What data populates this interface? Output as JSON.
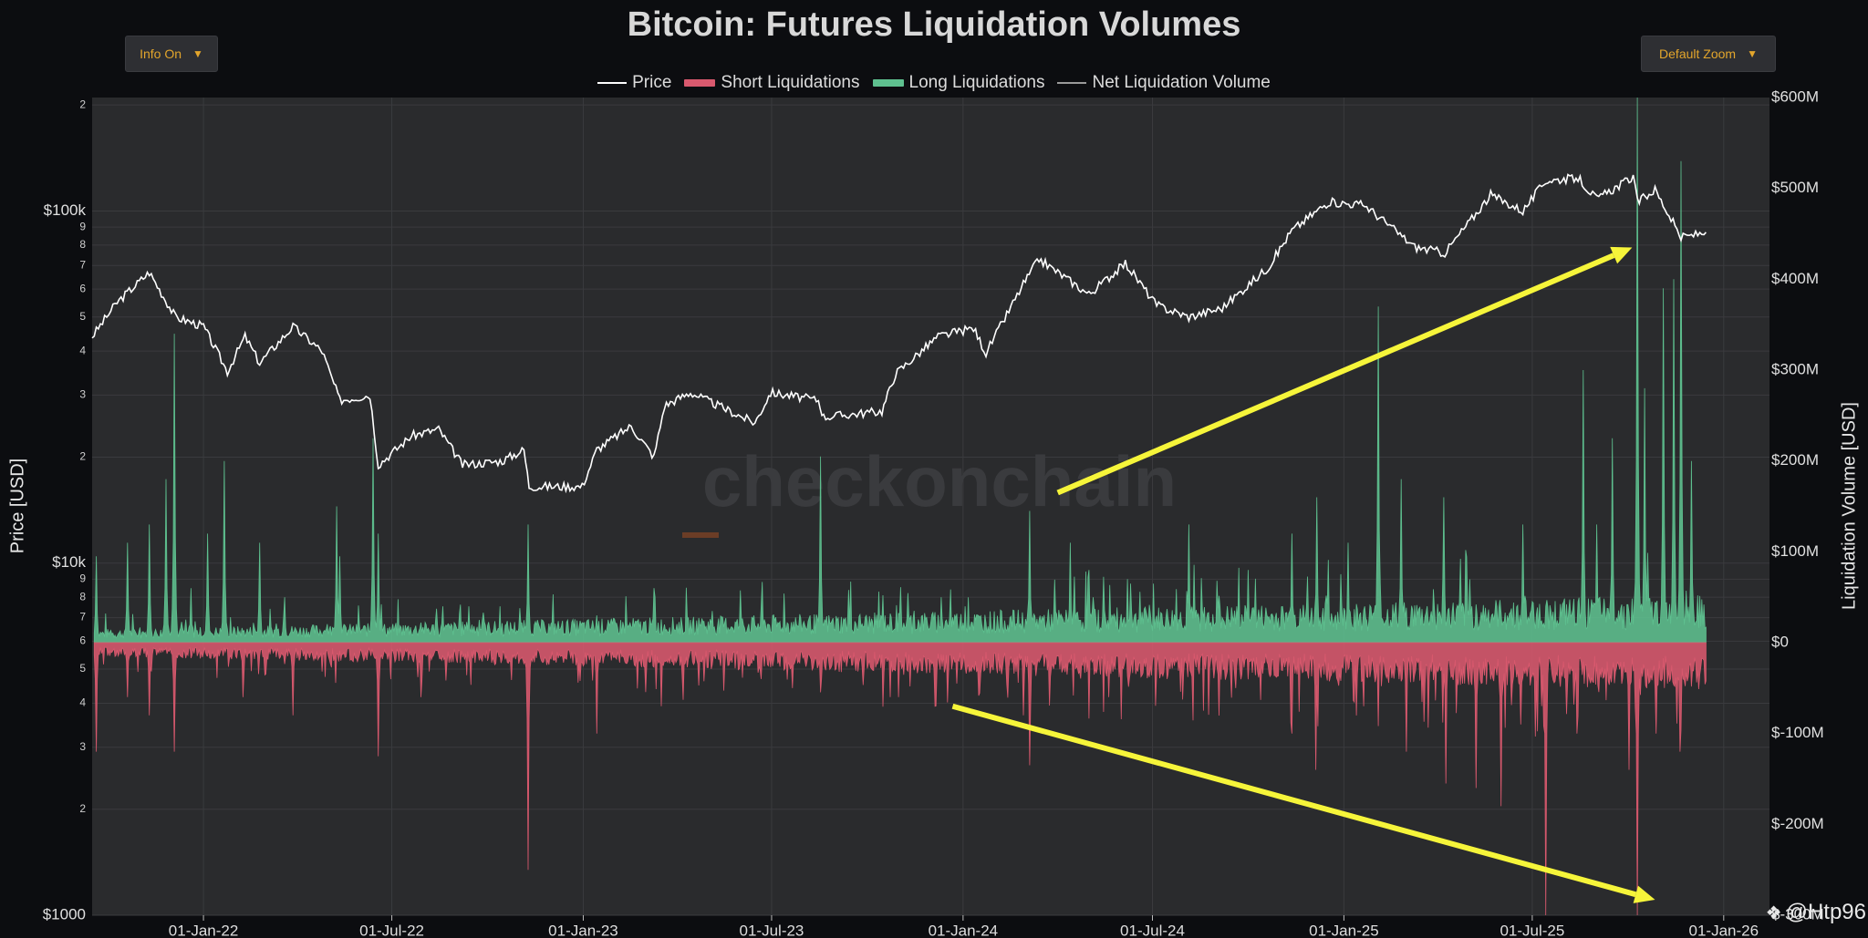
{
  "title": "Bitcoin: Futures Liquidation Volumes",
  "controls": {
    "info_button": "Info On",
    "zoom_button": "Default Zoom"
  },
  "legend": [
    {
      "label": "Price",
      "color": "#ffffff",
      "kind": "line"
    },
    {
      "label": "Short Liquidations",
      "color": "#d9596e",
      "kind": "box"
    },
    {
      "label": "Long Liquidations",
      "color": "#5ec08f",
      "kind": "box"
    },
    {
      "label": "Net Liquidation Volume",
      "color": "#9a9a9a",
      "kind": "line"
    }
  ],
  "watermark": "checkonchain",
  "credit": "@Htp96",
  "chart_data": {
    "type": "line",
    "title": "Bitcoin: Futures Liquidation Volumes",
    "x_ticks": [
      "01-Jan-22",
      "01-Jul-22",
      "01-Jan-23",
      "01-Jul-23",
      "01-Jan-24",
      "01-Jul-24",
      "01-Jan-25",
      "01-Jul-25",
      "01-Jan-26"
    ],
    "x_range": [
      "2021-09-16",
      "2026-02-14"
    ],
    "y_left": {
      "label": "Price [USD]",
      "scale": "log",
      "range": [
        1000,
        210000
      ],
      "major_ticks": [
        {
          "v": 1000,
          "t": "$1000"
        },
        {
          "v": 10000,
          "t": "$10k"
        },
        {
          "v": 100000,
          "t": "$100k"
        }
      ],
      "minor_ticks": [
        {
          "v": 2000,
          "t": "2"
        },
        {
          "v": 3000,
          "t": "3"
        },
        {
          "v": 4000,
          "t": "4"
        },
        {
          "v": 5000,
          "t": "5"
        },
        {
          "v": 6000,
          "t": "6"
        },
        {
          "v": 7000,
          "t": "7"
        },
        {
          "v": 8000,
          "t": "8"
        },
        {
          "v": 9000,
          "t": "9"
        },
        {
          "v": 20000,
          "t": "2"
        },
        {
          "v": 30000,
          "t": "3"
        },
        {
          "v": 40000,
          "t": "4"
        },
        {
          "v": 50000,
          "t": "5"
        },
        {
          "v": 60000,
          "t": "6"
        },
        {
          "v": 70000,
          "t": "7"
        },
        {
          "v": 80000,
          "t": "8"
        },
        {
          "v": 90000,
          "t": "9"
        },
        {
          "v": 200000,
          "t": "2"
        }
      ]
    },
    "y_right": {
      "label": "Liquidation Volume [USD]",
      "scale": "linear",
      "range": [
        -300,
        600
      ],
      "unit": "M",
      "ticks": [
        {
          "v": 600,
          "t": "$600M"
        },
        {
          "v": 500,
          "t": "$500M"
        },
        {
          "v": 400,
          "t": "$400M"
        },
        {
          "v": 300,
          "t": "$300M"
        },
        {
          "v": 200,
          "t": "$200M"
        },
        {
          "v": 100,
          "t": "$100M"
        },
        {
          "v": 0,
          "t": "$0"
        },
        {
          "v": -100,
          "t": "$-100M"
        },
        {
          "v": -200,
          "t": "$-200M"
        },
        {
          "v": -300,
          "t": "$-300M"
        }
      ]
    },
    "series": [
      {
        "name": "Price",
        "color": "#ffffff",
        "points": [
          [
            "2021-09-16",
            44000
          ],
          [
            "2021-10-10",
            55000
          ],
          [
            "2021-11-10",
            67000
          ],
          [
            "2021-12-05",
            50000
          ],
          [
            "2022-01-01",
            47000
          ],
          [
            "2022-01-24",
            35000
          ],
          [
            "2022-02-10",
            44000
          ],
          [
            "2022-02-24",
            37000
          ],
          [
            "2022-03-28",
            47000
          ],
          [
            "2022-04-25",
            40000
          ],
          [
            "2022-05-12",
            29000
          ],
          [
            "2022-06-10",
            30000
          ],
          [
            "2022-06-18",
            19000
          ],
          [
            "2022-07-20",
            23000
          ],
          [
            "2022-08-15",
            24000
          ],
          [
            "2022-09-07",
            19000
          ],
          [
            "2022-10-15",
            19500
          ],
          [
            "2022-11-05",
            21000
          ],
          [
            "2022-11-10",
            16500
          ],
          [
            "2022-12-31",
            16500
          ],
          [
            "2023-01-14",
            21000
          ],
          [
            "2023-02-16",
            24500
          ],
          [
            "2023-03-10",
            20000
          ],
          [
            "2023-03-20",
            28000
          ],
          [
            "2023-04-14",
            30500
          ],
          [
            "2023-06-15",
            25000
          ],
          [
            "2023-06-30",
            30500
          ],
          [
            "2023-08-15",
            29000
          ],
          [
            "2023-08-20",
            26000
          ],
          [
            "2023-10-15",
            27000
          ],
          [
            "2023-10-28",
            34500
          ],
          [
            "2023-12-08",
            44000
          ],
          [
            "2024-01-11",
            46500
          ],
          [
            "2024-01-23",
            39500
          ],
          [
            "2024-02-28",
            62000
          ],
          [
            "2024-03-14",
            73000
          ],
          [
            "2024-05-01",
            58000
          ],
          [
            "2024-06-05",
            71000
          ],
          [
            "2024-07-05",
            54000
          ],
          [
            "2024-08-05",
            50000
          ],
          [
            "2024-09-06",
            53000
          ],
          [
            "2024-10-20",
            69000
          ],
          [
            "2024-11-12",
            88000
          ],
          [
            "2024-12-17",
            106000
          ],
          [
            "2025-01-21",
            104000
          ],
          [
            "2025-03-10",
            79000
          ],
          [
            "2025-04-08",
            76000
          ],
          [
            "2025-05-22",
            111000
          ],
          [
            "2025-06-22",
            100000
          ],
          [
            "2025-07-14",
            122000
          ],
          [
            "2025-08-14",
            124000
          ],
          [
            "2025-09-01",
            108000
          ],
          [
            "2025-10-06",
            125000
          ],
          [
            "2025-10-10",
            106000
          ],
          [
            "2025-10-27",
            115000
          ],
          [
            "2025-11-21",
            84000
          ],
          [
            "2025-12-15",
            87000
          ]
        ]
      },
      {
        "name": "Long Liquidations",
        "color": "#5ec08f",
        "unit": "M USD",
        "points": [
          [
            "2021-09-20",
            95
          ],
          [
            "2021-10-20",
            110
          ],
          [
            "2021-11-10",
            130
          ],
          [
            "2021-11-26",
            180
          ],
          [
            "2021-12-04",
            340
          ],
          [
            "2021-12-20",
            60
          ],
          [
            "2022-01-05",
            120
          ],
          [
            "2022-01-21",
            200
          ],
          [
            "2022-02-24",
            110
          ],
          [
            "2022-03-20",
            50
          ],
          [
            "2022-05-09",
            150
          ],
          [
            "2022-05-12",
            95
          ],
          [
            "2022-06-13",
            225
          ],
          [
            "2022-06-18",
            120
          ],
          [
            "2022-08-19",
            40
          ],
          [
            "2022-09-13",
            40
          ],
          [
            "2022-11-09",
            130
          ],
          [
            "2023-01-14",
            30
          ],
          [
            "2023-03-10",
            60
          ],
          [
            "2023-06-21",
            40
          ],
          [
            "2023-08-17",
            205
          ],
          [
            "2023-12-11",
            50
          ],
          [
            "2024-01-03",
            40
          ],
          [
            "2024-03-05",
            145
          ],
          [
            "2024-04-13",
            110
          ],
          [
            "2024-05-01",
            80
          ],
          [
            "2024-06-07",
            70
          ],
          [
            "2024-08-05",
            130
          ],
          [
            "2024-10-01",
            80
          ],
          [
            "2024-11-12",
            120
          ],
          [
            "2024-12-06",
            160
          ],
          [
            "2025-01-05",
            110
          ],
          [
            "2025-02-03",
            370
          ],
          [
            "2025-02-25",
            180
          ],
          [
            "2025-04-07",
            160
          ],
          [
            "2025-06-22",
            130
          ],
          [
            "2025-08-19",
            300
          ],
          [
            "2025-09-01",
            130
          ],
          [
            "2025-09-16",
            225
          ],
          [
            "2025-10-10",
            600
          ],
          [
            "2025-10-17",
            280
          ],
          [
            "2025-11-04",
            390
          ],
          [
            "2025-11-14",
            400
          ],
          [
            "2025-11-21",
            530
          ],
          [
            "2025-12-01",
            200
          ]
        ]
      },
      {
        "name": "Short Liquidations",
        "color": "#d9596e",
        "unit": "M USD",
        "points": [
          [
            "2021-09-20",
            -120
          ],
          [
            "2021-10-20",
            -60
          ],
          [
            "2021-11-10",
            -80
          ],
          [
            "2021-12-04",
            -120
          ],
          [
            "2022-02-08",
            -60
          ],
          [
            "2022-03-28",
            -80
          ],
          [
            "2022-06-18",
            -125
          ],
          [
            "2022-07-29",
            -60
          ],
          [
            "2022-11-09",
            -250
          ],
          [
            "2023-01-14",
            -100
          ],
          [
            "2023-03-17",
            -70
          ],
          [
            "2023-06-21",
            -40
          ],
          [
            "2023-08-17",
            -30
          ],
          [
            "2023-10-23",
            -60
          ],
          [
            "2023-12-05",
            -70
          ],
          [
            "2024-02-28",
            -80
          ],
          [
            "2024-03-05",
            -135
          ],
          [
            "2024-05-20",
            -60
          ],
          [
            "2024-07-15",
            -40
          ],
          [
            "2024-09-19",
            -50
          ],
          [
            "2024-11-12",
            -100
          ],
          [
            "2024-12-05",
            -140
          ],
          [
            "2025-01-20",
            -70
          ],
          [
            "2025-03-02",
            -120
          ],
          [
            "2025-04-09",
            -155
          ],
          [
            "2025-05-08",
            -160
          ],
          [
            "2025-06-01",
            -180
          ],
          [
            "2025-06-20",
            -90
          ],
          [
            "2025-07-14",
            -300
          ],
          [
            "2025-08-13",
            -100
          ],
          [
            "2025-10-02",
            -140
          ],
          [
            "2025-10-10",
            -300
          ],
          [
            "2025-10-28",
            -100
          ],
          [
            "2025-11-20",
            -120
          ]
        ]
      }
    ],
    "annotations": [
      {
        "type": "arrow",
        "color": "#f6f53a",
        "from": [
          "2024-04-01",
          165
        ],
        "to": [
          "2025-10-05",
          435
        ]
      },
      {
        "type": "arrow",
        "color": "#f6f53a",
        "from": [
          "2023-12-22",
          -70
        ],
        "to": [
          "2025-10-27",
          -283
        ]
      }
    ]
  }
}
